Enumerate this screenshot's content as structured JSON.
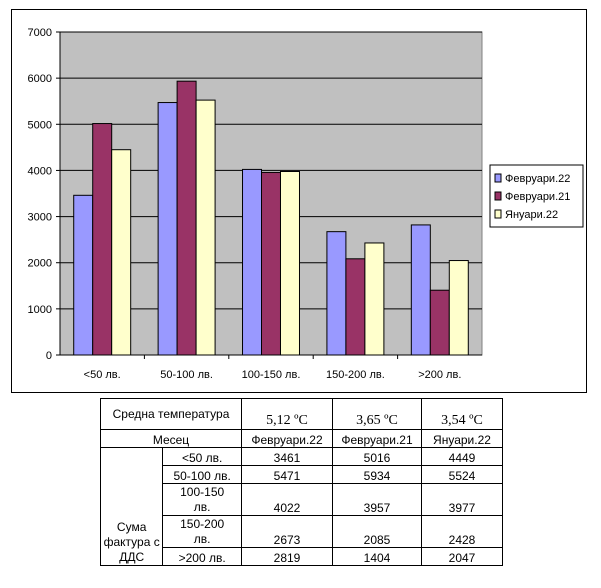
{
  "chart_data": {
    "type": "bar",
    "categories": [
      "<50 лв.",
      "50-100 лв.",
      "100-150 лв.",
      "150-200 лв.",
      ">200 лв."
    ],
    "series": [
      {
        "name": "Февруари.22",
        "values": [
          3461,
          5471,
          4022,
          2673,
          2819
        ],
        "color": "#9999FF"
      },
      {
        "name": "Февруари.21",
        "values": [
          5016,
          5934,
          3957,
          2085,
          1404
        ],
        "color": "#993366"
      },
      {
        "name": "Януари.22",
        "values": [
          4449,
          5524,
          3977,
          2428,
          2047
        ],
        "color": "#FFFFCC"
      }
    ],
    "ylim": [
      0,
      7000
    ],
    "yticks": [
      0,
      1000,
      2000,
      3000,
      4000,
      5000,
      6000,
      7000
    ],
    "grid": true,
    "plot_background": "#C0C0C0",
    "legend_position": "right"
  },
  "table": {
    "temp_label": "Средна температура",
    "temps": [
      "5,12 ºC",
      "3,65 ºC",
      "3,54 ºC"
    ],
    "month_label": "Месец",
    "months": [
      "Февруари.22",
      "Февруари.21",
      "Януари.22"
    ],
    "sum_label": "Сума фактура с ДДС",
    "rows": [
      {
        "label": "<50 лв.",
        "values": [
          "3461",
          "5016",
          "4449"
        ]
      },
      {
        "label": "50-100 лв.",
        "values": [
          "5471",
          "5934",
          "5524"
        ]
      },
      {
        "label": "100-150 лв.",
        "values": [
          "4022",
          "3957",
          "3977"
        ]
      },
      {
        "label": "150-200 лв.",
        "values": [
          "2673",
          "2085",
          "2428"
        ]
      },
      {
        "label": ">200 лв.",
        "values": [
          "2819",
          "1404",
          "2047"
        ]
      }
    ]
  }
}
